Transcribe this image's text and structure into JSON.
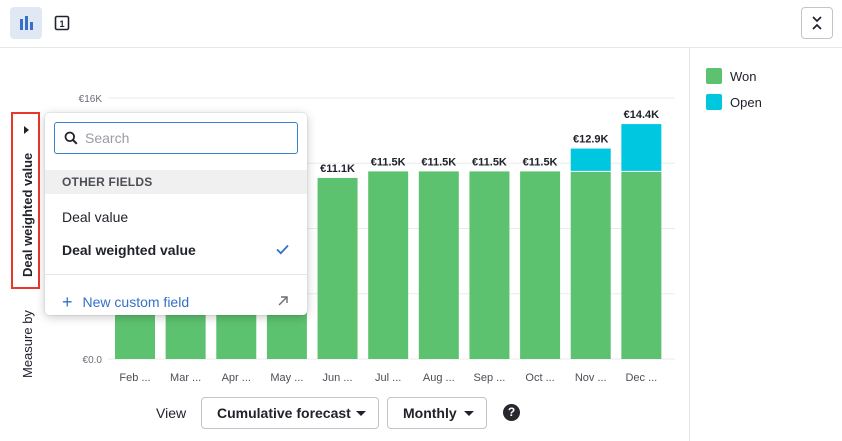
{
  "toolbar": {
    "chart_view_icon": "bar-chart-icon",
    "table_view_icon": "single-number-icon",
    "table_view_glyph": "1",
    "collapse_icon": "collapse-icon"
  },
  "colors": {
    "won": "#5dc270",
    "open": "#00c7e0",
    "accent": "#3670c8",
    "highlight": "#e8382a"
  },
  "measure": {
    "label": "Measure by",
    "value": "Deal weighted value"
  },
  "dropdown": {
    "search_placeholder": "Search",
    "search_value": "",
    "section_header": "OTHER FIELDS",
    "items": [
      {
        "label": "Deal value",
        "selected": false
      },
      {
        "label": "Deal weighted value",
        "selected": true
      }
    ],
    "new_field_label": "New custom field"
  },
  "legend": [
    {
      "name": "Won",
      "color": "#5dc270"
    },
    {
      "name": "Open",
      "color": "#00c7e0"
    }
  ],
  "chart_data": {
    "type": "bar",
    "stacked": true,
    "categories": [
      "Feb ...",
      "Mar ...",
      "Apr ...",
      "May ...",
      "Jun ...",
      "Jul ...",
      "Aug ...",
      "Sep ...",
      "Oct ...",
      "Nov ...",
      "Dec ..."
    ],
    "series": [
      {
        "name": "Won",
        "values": [
          9000,
          9000,
          9000,
          11100,
          11100,
          11500,
          11500,
          11500,
          11500,
          11500,
          11500
        ]
      },
      {
        "name": "Open",
        "values": [
          0,
          0,
          0,
          0,
          0,
          0,
          0,
          0,
          0,
          1400,
          2900
        ]
      }
    ],
    "totals_labels": [
      "",
      "",
      "",
      "",
      "€11.1K",
      "€11.5K",
      "€11.5K",
      "€11.5K",
      "€11.5K",
      "€12.9K",
      "€14.4K"
    ],
    "y_ticks": [
      {
        "value": 0,
        "label": "€0.0"
      },
      {
        "value": 16000,
        "label": "€16K"
      }
    ],
    "grid_values": [
      4000,
      8000,
      12000
    ],
    "ylim": [
      0,
      16000
    ],
    "legend_position": "right"
  },
  "controls": {
    "view_label": "View",
    "forecast_select": "Cumulative forecast",
    "interval_select": "Monthly",
    "help_glyph": "?"
  }
}
